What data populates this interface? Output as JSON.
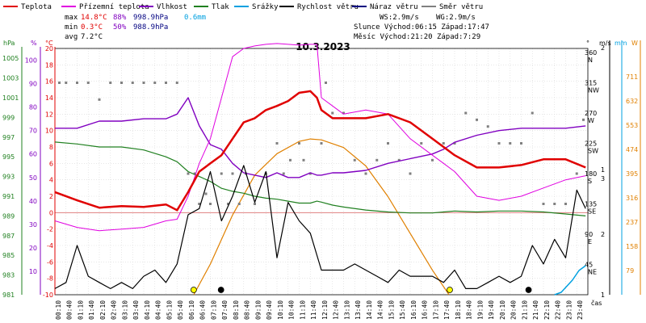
{
  "chart_data": {
    "type": "line",
    "title": "10.3.2023",
    "legend": [
      {
        "label": "Teplota",
        "color": "#e00000"
      },
      {
        "label": "Přízemní teplota",
        "color": "#e000e0"
      },
      {
        "label": "Vlhkost",
        "color": "#8000c0"
      },
      {
        "label": "Tlak",
        "color": "#208020"
      },
      {
        "label": "Srážky",
        "color": "#00a0e0"
      },
      {
        "label": "Rychlost větru",
        "color": "#000000"
      },
      {
        "label": "Náraz větru",
        "color": "#000080"
      },
      {
        "label": "Směr větru",
        "color": "#808080"
      }
    ],
    "stats": {
      "max_label": "max",
      "max_temp": "14.8°C",
      "max_hum": "88%",
      "max_press": "998.9hPa",
      "max_rain": "0.6mm",
      "min_label": "min",
      "min_temp": "0.3°C",
      "min_hum": "50%",
      "min_press": "988.9hPa",
      "avg_label": "avg",
      "avg_temp": "7.2°C",
      "ws": "WS:2.9m/s",
      "wg": "WG:2.9m/s",
      "sun": "Slunce Východ:06:15  Západ:17:47",
      "moon": "Měsíc  Východ:21:20  Západ:7:29"
    },
    "axis_units": {
      "press": "hPa",
      "hum": "%",
      "temp": "°C",
      "dir": "°",
      "wind": "m/s",
      "rain": "mm",
      "solar": "W"
    },
    "x_label": "čas",
    "x_ticks": [
      "00:10",
      "00:40",
      "01:10",
      "01:40",
      "02:10",
      "02:40",
      "03:10",
      "03:40",
      "04:10",
      "04:40",
      "05:10",
      "05:40",
      "06:10",
      "06:40",
      "07:10",
      "07:40",
      "08:10",
      "08:40",
      "09:10",
      "09:40",
      "10:10",
      "10:40",
      "11:10",
      "11:40",
      "12:10",
      "12:40",
      "13:10",
      "13:40",
      "14:10",
      "14:40",
      "15:10",
      "15:40",
      "16:10",
      "16:40",
      "17:10",
      "17:40",
      "18:10",
      "18:40",
      "19:10",
      "19:40",
      "20:10",
      "20:40",
      "21:10",
      "21:40",
      "22:10",
      "22:40",
      "23:10",
      "23:40"
    ],
    "press_ticks": [
      "1005",
      "1003",
      "1001",
      "999",
      "997",
      "995",
      "993",
      "991",
      "989",
      "987",
      "985",
      "983",
      "981"
    ],
    "hum_ticks": [
      "100",
      "90",
      "80",
      "70",
      "60",
      "50",
      "40",
      "30",
      "20",
      "10"
    ],
    "temp_ticks": [
      "20",
      "18",
      "16",
      "14",
      "12",
      "10",
      "8",
      "6",
      "4",
      "2",
      "0",
      "-2",
      "-4",
      "-6",
      "-8",
      "-10"
    ],
    "dir_ticks": [
      "360",
      "315",
      "270",
      "225",
      "180",
      "135",
      "90",
      "45"
    ],
    "dir_labels": [
      "N",
      "NW",
      "W",
      "SW",
      "S",
      "SE",
      "E",
      "NE"
    ],
    "wind_ticks": [
      "2",
      "1",
      "3",
      "2",
      "1"
    ],
    "solar_ticks": [
      "711",
      "632",
      "553",
      "474",
      "395",
      "316",
      "237",
      "158",
      "79"
    ],
    "temp_range": [
      -10,
      20
    ],
    "hum_range": [
      0,
      105
    ],
    "press_range": [
      981,
      1006
    ],
    "wind_range": [
      0,
      4
    ],
    "hours": [
      0,
      1,
      2,
      3,
      4,
      5,
      5.5,
      6,
      6.5,
      7,
      7.5,
      8,
      8.5,
      9,
      9.5,
      10,
      10.5,
      11,
      11.5,
      11.8,
      12,
      12.5,
      13,
      14,
      15,
      16,
      17,
      17.5,
      18,
      19,
      20,
      21,
      22,
      23,
      23.9
    ],
    "temperature": [
      2.5,
      1.5,
      0.6,
      0.8,
      0.7,
      1.0,
      0.3,
      2.5,
      5.0,
      6.0,
      7.0,
      9.0,
      11.0,
      11.5,
      12.5,
      13.0,
      13.6,
      14.6,
      14.8,
      14.0,
      12.5,
      11.5,
      11.5,
      11.5,
      12.0,
      11.0,
      9.0,
      8.0,
      7.0,
      5.5,
      5.5,
      5.8,
      6.5,
      6.5,
      5.5
    ],
    "ground_temperature": [
      -1.0,
      -1.8,
      -2.2,
      -2.0,
      -1.8,
      -1.0,
      -0.8,
      2.0,
      6.0,
      9.0,
      14.0,
      19.0,
      20.0,
      20.3,
      20.5,
      20.6,
      20.5,
      20.4,
      20.5,
      20.5,
      14.0,
      13.0,
      12.0,
      12.5,
      12.0,
      9.0,
      7.0,
      6.0,
      5.0,
      2.0,
      1.5,
      2.0,
      3.0,
      4.0,
      4.5
    ],
    "humidity": [
      71,
      71,
      74,
      74,
      75,
      75,
      77,
      84,
      72,
      64,
      62,
      56,
      52,
      51,
      50,
      52,
      50,
      50,
      52,
      51,
      51,
      52,
      52,
      53,
      56,
      58,
      60,
      62,
      65,
      68,
      70,
      71,
      71,
      71,
      72
    ],
    "pressure": [
      996.5,
      996.3,
      996.0,
      996.0,
      995.7,
      995.0,
      994.5,
      993.5,
      993.0,
      992.5,
      991.8,
      991.5,
      991.3,
      991.0,
      990.8,
      990.7,
      990.5,
      990.3,
      990.3,
      990.5,
      990.4,
      990.1,
      989.9,
      989.6,
      989.4,
      989.3,
      989.3,
      989.4,
      989.5,
      989.4,
      989.5,
      989.5,
      989.4,
      989.2,
      989.0
    ],
    "rain_hours": [
      22.5,
      22.8,
      23.0,
      23.3,
      23.6,
      23.9
    ],
    "rain_values": [
      0,
      0.05,
      0.15,
      0.3,
      0.5,
      0.6
    ],
    "wind_hours": [
      0,
      0.5,
      1,
      1.5,
      2,
      2.5,
      3,
      3.5,
      4,
      4.5,
      5,
      5.5,
      6,
      6.5,
      7,
      7.5,
      8,
      8.5,
      9,
      9.5,
      10,
      10.5,
      11,
      11.5,
      12,
      12.5,
      13,
      13.5,
      14,
      14.5,
      15,
      15.5,
      16,
      16.5,
      17,
      17.5,
      18,
      18.5,
      19,
      19.5,
      20,
      20.5,
      21,
      21.5,
      22,
      22.5,
      23,
      23.5,
      23.9
    ],
    "wind_speed": [
      0.1,
      0.2,
      0.8,
      0.3,
      0.2,
      0.1,
      0.2,
      0.1,
      0.3,
      0.4,
      0.2,
      0.5,
      1.3,
      1.4,
      2.0,
      1.2,
      1.6,
      2.1,
      1.5,
      2.0,
      0.6,
      1.5,
      1.2,
      1.0,
      0.4,
      0.4,
      0.4,
      0.5,
      0.4,
      0.3,
      0.2,
      0.4,
      0.3,
      0.3,
      0.3,
      0.2,
      0.4,
      0.1,
      0.1,
      0.2,
      0.3,
      0.2,
      0.3,
      0.8,
      0.5,
      0.9,
      0.6,
      1.7,
      1.4
    ],
    "solar_hours": [
      6.25,
      7,
      8,
      9,
      10,
      11,
      11.5,
      12,
      13,
      14,
      15,
      16,
      17,
      17.75
    ],
    "solar_values": [
      0,
      100,
      260,
      390,
      460,
      500,
      508,
      505,
      480,
      420,
      320,
      200,
      80,
      0
    ],
    "dir_samples": [
      [
        0.2,
        315
      ],
      [
        0.5,
        315
      ],
      [
        1,
        315
      ],
      [
        1.5,
        315
      ],
      [
        2,
        290
      ],
      [
        2.5,
        315
      ],
      [
        3,
        315
      ],
      [
        3.5,
        315
      ],
      [
        4,
        315
      ],
      [
        4.5,
        315
      ],
      [
        5,
        315
      ],
      [
        5.5,
        315
      ],
      [
        6,
        180
      ],
      [
        6.3,
        180
      ],
      [
        6.5,
        135
      ],
      [
        6.8,
        150
      ],
      [
        7,
        135
      ],
      [
        7.5,
        180
      ],
      [
        7.8,
        135
      ],
      [
        8,
        180
      ],
      [
        8.3,
        135
      ],
      [
        8.6,
        180
      ],
      [
        9,
        135
      ],
      [
        9.5,
        180
      ],
      [
        10,
        225
      ],
      [
        10.3,
        180
      ],
      [
        10.6,
        200
      ],
      [
        11,
        225
      ],
      [
        11.2,
        200
      ],
      [
        11.5,
        180
      ],
      [
        12,
        225
      ],
      [
        12.2,
        315
      ],
      [
        12.5,
        270
      ],
      [
        13,
        270
      ],
      [
        13.5,
        200
      ],
      [
        14,
        180
      ],
      [
        14.5,
        200
      ],
      [
        15,
        225
      ],
      [
        15.5,
        200
      ],
      [
        16,
        180
      ],
      [
        16.5,
        225
      ],
      [
        17,
        200
      ],
      [
        17.5,
        225
      ],
      [
        18,
        225
      ],
      [
        18.5,
        270
      ],
      [
        19,
        260
      ],
      [
        19.5,
        250
      ],
      [
        20,
        225
      ],
      [
        20.5,
        225
      ],
      [
        21,
        225
      ],
      [
        21.5,
        270
      ],
      [
        22,
        135
      ],
      [
        22.5,
        135
      ],
      [
        23,
        135
      ],
      [
        23.5,
        180
      ],
      [
        23.8,
        260
      ]
    ]
  }
}
